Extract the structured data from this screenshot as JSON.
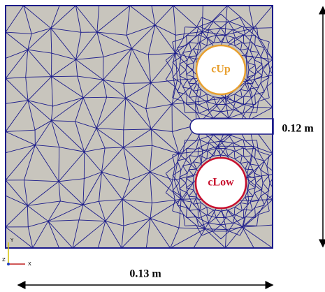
{
  "labels": {
    "upper_hole": "cUp",
    "lower_hole": "cLow",
    "height": "0.12 m",
    "width": "0.13 m"
  },
  "axes": {
    "y": "Y",
    "z": "Z",
    "x": "X"
  }
}
